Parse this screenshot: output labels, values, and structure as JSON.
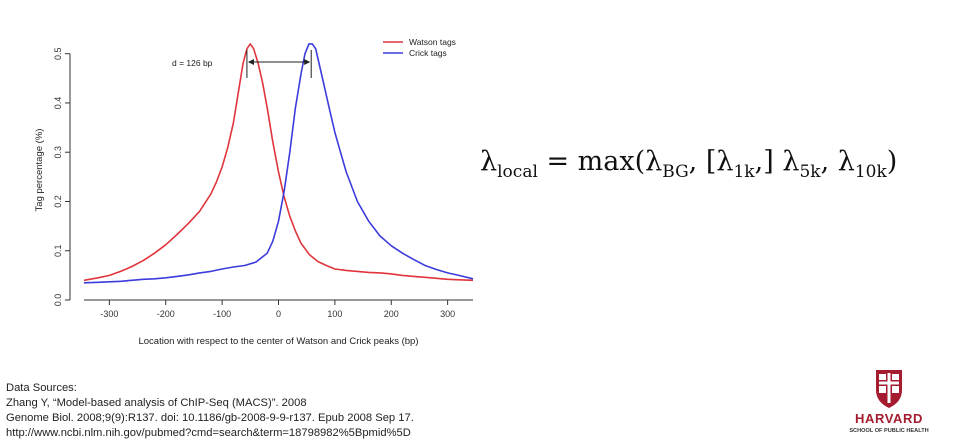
{
  "chart_data": {
    "type": "line",
    "xlabel": "Location with respect to the center of Watson and Crick peaks (bp)",
    "ylabel": "Tag percentage (%)",
    "xlim": [
      -345,
      345
    ],
    "ylim": [
      0,
      0.54
    ],
    "x_ticks": [
      "-300",
      "-200",
      "-100",
      "0",
      "100",
      "200",
      "300"
    ],
    "y_ticks": [
      "0.0",
      "0.1",
      "0.2",
      "0.3",
      "0.4",
      "0.5"
    ],
    "legend_position": "top-right",
    "annotation": "d = 126 bp",
    "colors": {
      "watson": "#e0353d",
      "crick": "#3c3cdd"
    },
    "series": [
      {
        "name": "Watson tags",
        "x": [
          -345,
          -320,
          -300,
          -280,
          -260,
          -240,
          -220,
          -200,
          -180,
          -160,
          -140,
          -120,
          -110,
          -100,
          -90,
          -80,
          -70,
          -63,
          -56,
          -50,
          -44,
          -36,
          -28,
          -20,
          -10,
          0,
          10,
          20,
          30,
          40,
          55,
          70,
          85,
          100,
          120,
          140,
          160,
          180,
          200,
          220,
          240,
          260,
          280,
          300,
          320,
          345
        ],
        "y": [
          0.04,
          0.045,
          0.05,
          0.058,
          0.068,
          0.08,
          0.095,
          0.112,
          0.133,
          0.155,
          0.18,
          0.215,
          0.24,
          0.27,
          0.31,
          0.36,
          0.43,
          0.48,
          0.51,
          0.52,
          0.51,
          0.48,
          0.44,
          0.39,
          0.32,
          0.26,
          0.21,
          0.17,
          0.14,
          0.115,
          0.092,
          0.078,
          0.07,
          0.063,
          0.06,
          0.058,
          0.056,
          0.055,
          0.053,
          0.05,
          0.048,
          0.046,
          0.044,
          0.042,
          0.041,
          0.04
        ]
      },
      {
        "name": "Crick tags",
        "x": [
          -345,
          -320,
          -300,
          -280,
          -260,
          -240,
          -220,
          -200,
          -180,
          -160,
          -140,
          -120,
          -100,
          -80,
          -60,
          -40,
          -20,
          -10,
          0,
          10,
          20,
          30,
          40,
          47,
          54,
          60,
          66,
          72,
          80,
          90,
          100,
          110,
          120,
          140,
          160,
          180,
          200,
          220,
          240,
          260,
          280,
          300,
          320,
          345
        ],
        "y": [
          0.035,
          0.036,
          0.037,
          0.038,
          0.04,
          0.042,
          0.043,
          0.045,
          0.048,
          0.051,
          0.055,
          0.058,
          0.063,
          0.067,
          0.07,
          0.077,
          0.095,
          0.12,
          0.16,
          0.22,
          0.3,
          0.39,
          0.46,
          0.5,
          0.52,
          0.52,
          0.51,
          0.48,
          0.44,
          0.39,
          0.34,
          0.3,
          0.26,
          0.2,
          0.16,
          0.13,
          0.11,
          0.095,
          0.082,
          0.07,
          0.062,
          0.055,
          0.05,
          0.043
        ]
      }
    ]
  },
  "formula": {
    "lambda": "λ",
    "local_sub": "local",
    "eq": " = max(",
    "bg_sub": "BG",
    "sep1": ", [",
    "k1_sub": "1k",
    "sep2": ",] ",
    "k5_sub": "5k",
    "sep3": ", ",
    "k10_sub": "10k",
    "close": ")"
  },
  "sources": {
    "heading": "Data Sources:",
    "line1": "Zhang Y, “Model-based analysis of ChIP-Seq (MACS)”. 2008",
    "line2": "Genome Biol. 2008;9(9):R137. doi: 10.1186/gb-2008-9-9-r137. Epub 2008 Sep 17.",
    "line3": "http://www.ncbi.nlm.nih.gov/pubmed?cmd=search&term=18798982%5Bpmid%5D"
  },
  "logo": {
    "name": "HARVARD",
    "subtitle": "SCHOOL OF PUBLIC HEALTH"
  }
}
